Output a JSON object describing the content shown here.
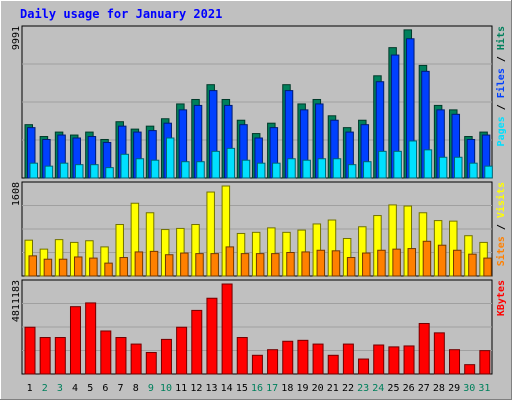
{
  "title": "Daily usage for January 2021",
  "colors": {
    "background": "#c0c0c0",
    "panel": "#c0c0c0",
    "grid": "#a0a0a0",
    "hits": "#00805c",
    "files": "#0040ff",
    "pages": "#00e0ff",
    "visits": "#ffff00",
    "sites": "#ff8000",
    "kbytes": "#ff0000",
    "weekday_label": "#000000",
    "weekend_label": "#00805c"
  },
  "chart_data": [
    {
      "type": "bar",
      "categories": [
        "1",
        "2",
        "3",
        "4",
        "5",
        "6",
        "7",
        "8",
        "9",
        "10",
        "11",
        "12",
        "13",
        "14",
        "15",
        "16",
        "17",
        "18",
        "19",
        "20",
        "21",
        "22",
        "23",
        "24",
        "25",
        "26",
        "27",
        "28",
        "29",
        "30",
        "31"
      ],
      "weekend_days": [
        "2",
        "3",
        "9",
        "10",
        "16",
        "17",
        "23",
        "24",
        "30",
        "31"
      ],
      "ymax_label": "9991",
      "ylim": [
        0,
        9991
      ],
      "axis_title_parts": [
        {
          "text": "Pages",
          "color": "#00e0ff"
        },
        {
          "text": " / ",
          "color": "#000000"
        },
        {
          "text": "Files",
          "color": "#0040ff"
        },
        {
          "text": " / ",
          "color": "#000000"
        },
        {
          "text": "Hits",
          "color": "#00805c"
        }
      ],
      "series": [
        {
          "name": "Hits",
          "values": [
            3600,
            2800,
            3100,
            2900,
            3100,
            2600,
            3800,
            3300,
            3500,
            4000,
            5000,
            5300,
            6300,
            5300,
            3900,
            3000,
            3700,
            6300,
            5000,
            5300,
            4200,
            3400,
            3900,
            6900,
            8800,
            10000,
            7600,
            4900,
            4600,
            2800,
            3100
          ]
        },
        {
          "name": "Files",
          "values": [
            3400,
            2600,
            2900,
            2700,
            2800,
            2400,
            3500,
            3100,
            3200,
            3700,
            4600,
            4900,
            5900,
            4900,
            3600,
            2700,
            3400,
            5900,
            4600,
            5000,
            3900,
            3100,
            3600,
            6500,
            8300,
            9400,
            7200,
            4600,
            4300,
            2600,
            2900
          ]
        },
        {
          "name": "Pages",
          "values": [
            1000,
            800,
            1000,
            900,
            900,
            700,
            1600,
            1300,
            1200,
            2700,
            1100,
            1100,
            1800,
            2000,
            1200,
            1000,
            1000,
            1300,
            1200,
            1300,
            1300,
            900,
            1100,
            1800,
            1800,
            2500,
            1900,
            1400,
            1400,
            1000,
            800
          ]
        }
      ]
    },
    {
      "type": "bar",
      "categories": [
        "1",
        "2",
        "3",
        "4",
        "5",
        "6",
        "7",
        "8",
        "9",
        "10",
        "11",
        "12",
        "13",
        "14",
        "15",
        "16",
        "17",
        "18",
        "19",
        "20",
        "21",
        "22",
        "23",
        "24",
        "25",
        "26",
        "27",
        "28",
        "29",
        "30",
        "31"
      ],
      "ymax_label": "1608",
      "ylim": [
        0,
        1608
      ],
      "axis_title_parts": [
        {
          "text": "Sites",
          "color": "#ff8000"
        },
        {
          "text": " / ",
          "color": "#000000"
        },
        {
          "text": "Visits",
          "color": "#ffff00"
        }
      ],
      "series": [
        {
          "name": "Visits",
          "values": [
            640,
            480,
            650,
            600,
            630,
            520,
            920,
            1300,
            1130,
            830,
            850,
            920,
            1500,
            1608,
            760,
            780,
            860,
            780,
            820,
            930,
            1000,
            670,
            880,
            1080,
            1270,
            1250,
            1130,
            990,
            980,
            720,
            600
          ]
        },
        {
          "name": "Sites",
          "values": [
            360,
            300,
            300,
            340,
            320,
            230,
            330,
            430,
            440,
            380,
            410,
            400,
            400,
            520,
            400,
            400,
            400,
            420,
            430,
            460,
            450,
            330,
            410,
            460,
            480,
            490,
            620,
            550,
            460,
            390,
            320
          ]
        }
      ]
    },
    {
      "type": "bar",
      "categories": [
        "1",
        "2",
        "3",
        "4",
        "5",
        "6",
        "7",
        "8",
        "9",
        "10",
        "11",
        "12",
        "13",
        "14",
        "15",
        "16",
        "17",
        "18",
        "19",
        "20",
        "21",
        "22",
        "23",
        "24",
        "25",
        "26",
        "27",
        "28",
        "29",
        "30",
        "31"
      ],
      "ymax_label": "4811183",
      "ylim": [
        0,
        4811183
      ],
      "axis_title_parts": [
        {
          "text": "KBytes",
          "color": "#ff0000"
        }
      ],
      "series": [
        {
          "name": "KBytes",
          "values": [
            2500000,
            1950000,
            1950000,
            3600000,
            3800000,
            2300000,
            1950000,
            1600000,
            1150000,
            1850000,
            2500000,
            3400000,
            4050000,
            4811183,
            1950000,
            1000000,
            1300000,
            1750000,
            1800000,
            1600000,
            1000000,
            1600000,
            800000,
            1550000,
            1450000,
            1500000,
            2700000,
            2200000,
            1300000,
            500000,
            1250000
          ]
        }
      ]
    }
  ]
}
